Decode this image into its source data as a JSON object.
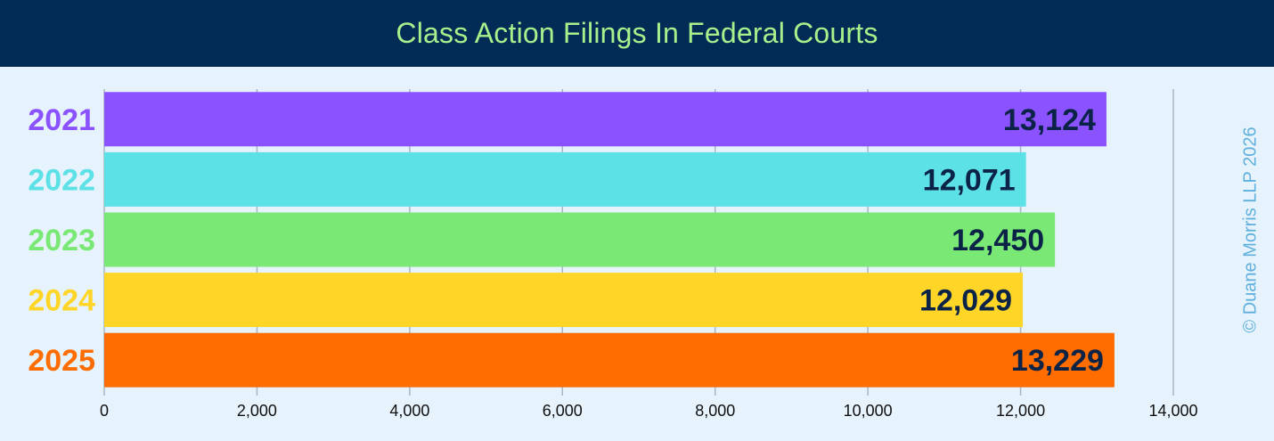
{
  "chart_data": {
    "type": "bar",
    "orientation": "horizontal",
    "title": "Class Action Filings In Federal Courts",
    "categories": [
      "2021",
      "2022",
      "2023",
      "2024",
      "2025"
    ],
    "values": [
      13124,
      12071,
      12450,
      12029,
      13229
    ],
    "value_labels": [
      "13,124",
      "12,071",
      "12,450",
      "12,029",
      "13,229"
    ],
    "bar_colors": [
      "#8b52ff",
      "#5ce1e6",
      "#7ae875",
      "#ffd528",
      "#ff6d00"
    ],
    "xlim": [
      0,
      14000
    ],
    "x_ticks": [
      0,
      2000,
      4000,
      6000,
      8000,
      10000,
      12000,
      14000
    ],
    "x_tick_labels": [
      "0",
      "2,000",
      "4,000",
      "6,000",
      "8,000",
      "10,000",
      "12,000",
      "14,000"
    ],
    "grid": true,
    "legend": "none"
  },
  "watermark": "© Duane Morris LLP 2026",
  "colors": {
    "header_bg": "#022b55",
    "title_text": "#a8f08c",
    "value_text": "#0b2347",
    "background": "#e6f2fc"
  }
}
